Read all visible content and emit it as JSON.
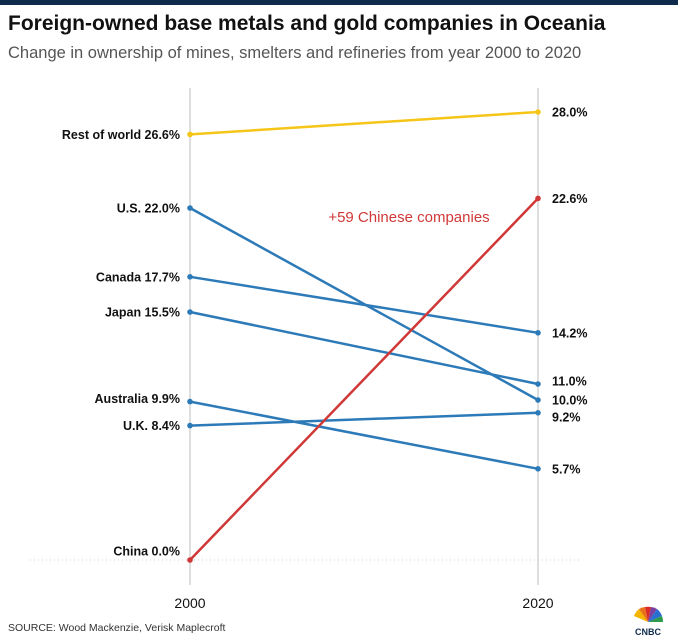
{
  "header": {
    "title": "Foreign-owned base metals and gold companies in Oceania",
    "subtitle": "Change in ownership of mines, smelters and refineries from year 2000 to 2020"
  },
  "footer": {
    "source": "SOURCE: Wood Mackenzie, Verisk Maplecroft",
    "logo_text": "CNBC"
  },
  "colors": {
    "blue": "#2d7ab8",
    "yellow": "#f5c518",
    "red": "#d03838",
    "axis": "#bdbdbd"
  },
  "chart_data": {
    "type": "line",
    "x": [
      "2000",
      "2020"
    ],
    "xlabel": "",
    "ylabel": "",
    "ylim": [
      0,
      30
    ],
    "grid": false,
    "annotation": {
      "text": "+59 Chinese companies",
      "color": "#d03838"
    },
    "series": [
      {
        "name": "Rest of world",
        "values": [
          26.6,
          28.0
        ],
        "start_label": "Rest of world 26.6%",
        "end_label": "28.0%",
        "color": "#f5c518"
      },
      {
        "name": "U.S.",
        "values": [
          22.0,
          10.0
        ],
        "start_label": "U.S. 22.0%",
        "end_label": "10.0%",
        "color": "#2d7ab8"
      },
      {
        "name": "Canada",
        "values": [
          17.7,
          14.2
        ],
        "start_label": "Canada 17.7%",
        "end_label": "14.2%",
        "color": "#2d7ab8"
      },
      {
        "name": "Japan",
        "values": [
          15.5,
          11.0
        ],
        "start_label": "Japan 15.5%",
        "end_label": "11.0%",
        "color": "#2d7ab8"
      },
      {
        "name": "Australia",
        "values": [
          9.9,
          5.7
        ],
        "start_label": "Australia 9.9%",
        "end_label": "5.7%",
        "color": "#2d7ab8"
      },
      {
        "name": "U.K.",
        "values": [
          8.4,
          9.2
        ],
        "start_label": "U.K. 8.4%",
        "end_label": "9.2%",
        "color": "#2d7ab8"
      },
      {
        "name": "China",
        "values": [
          0.0,
          22.6
        ],
        "start_label": "China 0.0%",
        "end_label": "22.6%",
        "color": "#d03838"
      }
    ]
  }
}
